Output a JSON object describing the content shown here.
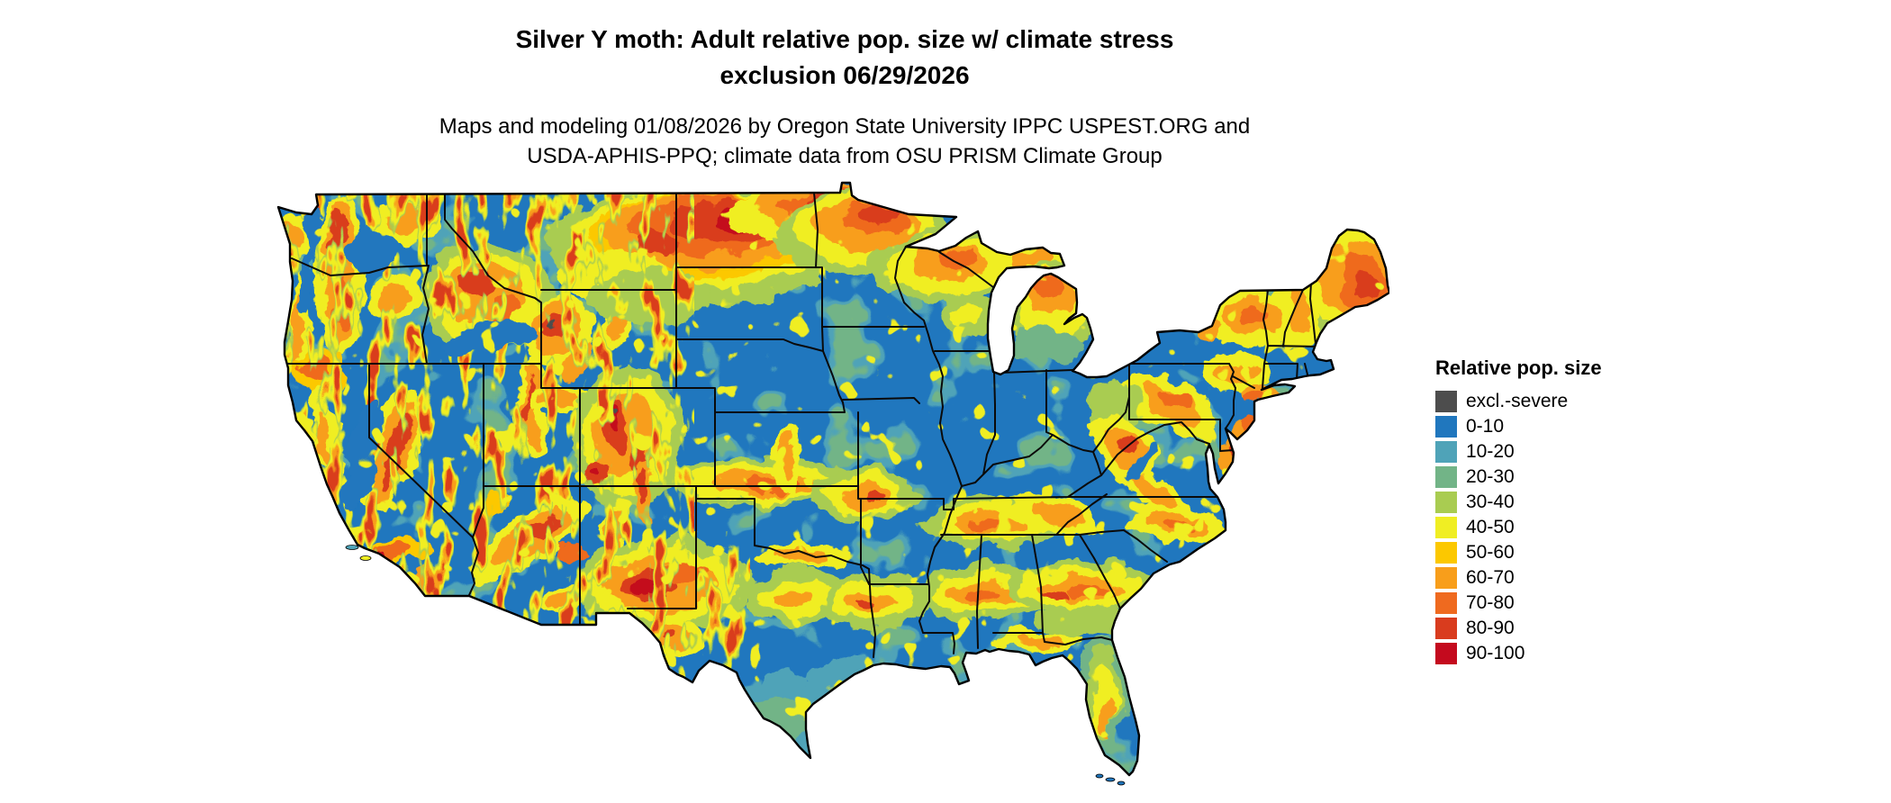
{
  "header": {
    "title_line1": "Silver Y moth: Adult relative pop. size w/ climate stress",
    "title_line2": "exclusion 06/29/2026",
    "subtitle_line1": "Maps and modeling 01/08/2026 by Oregon State University IPPC USPEST.ORG and",
    "subtitle_line2": "USDA-APHIS-PPQ; climate data from OSU PRISM Climate Group"
  },
  "legend": {
    "title": "Relative pop. size",
    "items": [
      {
        "label": "excl.-severe",
        "bucket": "excl",
        "color": "#4D4D4D"
      },
      {
        "label": "0-10",
        "bucket": "0-10",
        "color": "#2077BE"
      },
      {
        "label": "10-20",
        "bucket": "10-20",
        "color": "#4FA3B8"
      },
      {
        "label": "20-30",
        "bucket": "20-30",
        "color": "#72B487"
      },
      {
        "label": "30-40",
        "bucket": "30-40",
        "color": "#A9CC51"
      },
      {
        "label": "40-50",
        "bucket": "40-50",
        "color": "#F0EE23"
      },
      {
        "label": "50-60",
        "bucket": "50-60",
        "color": "#FCC800"
      },
      {
        "label": "60-70",
        "bucket": "60-70",
        "color": "#F89E1B"
      },
      {
        "label": "70-80",
        "bucket": "70-80",
        "color": "#EF6A1F"
      },
      {
        "label": "80-90",
        "bucket": "80-90",
        "color": "#D93C1E"
      },
      {
        "label": "90-100",
        "bucket": "90-100",
        "color": "#C40A1E"
      }
    ]
  },
  "map": {
    "region_label": "Contiguous United States",
    "base_bucket": "0-10"
  }
}
